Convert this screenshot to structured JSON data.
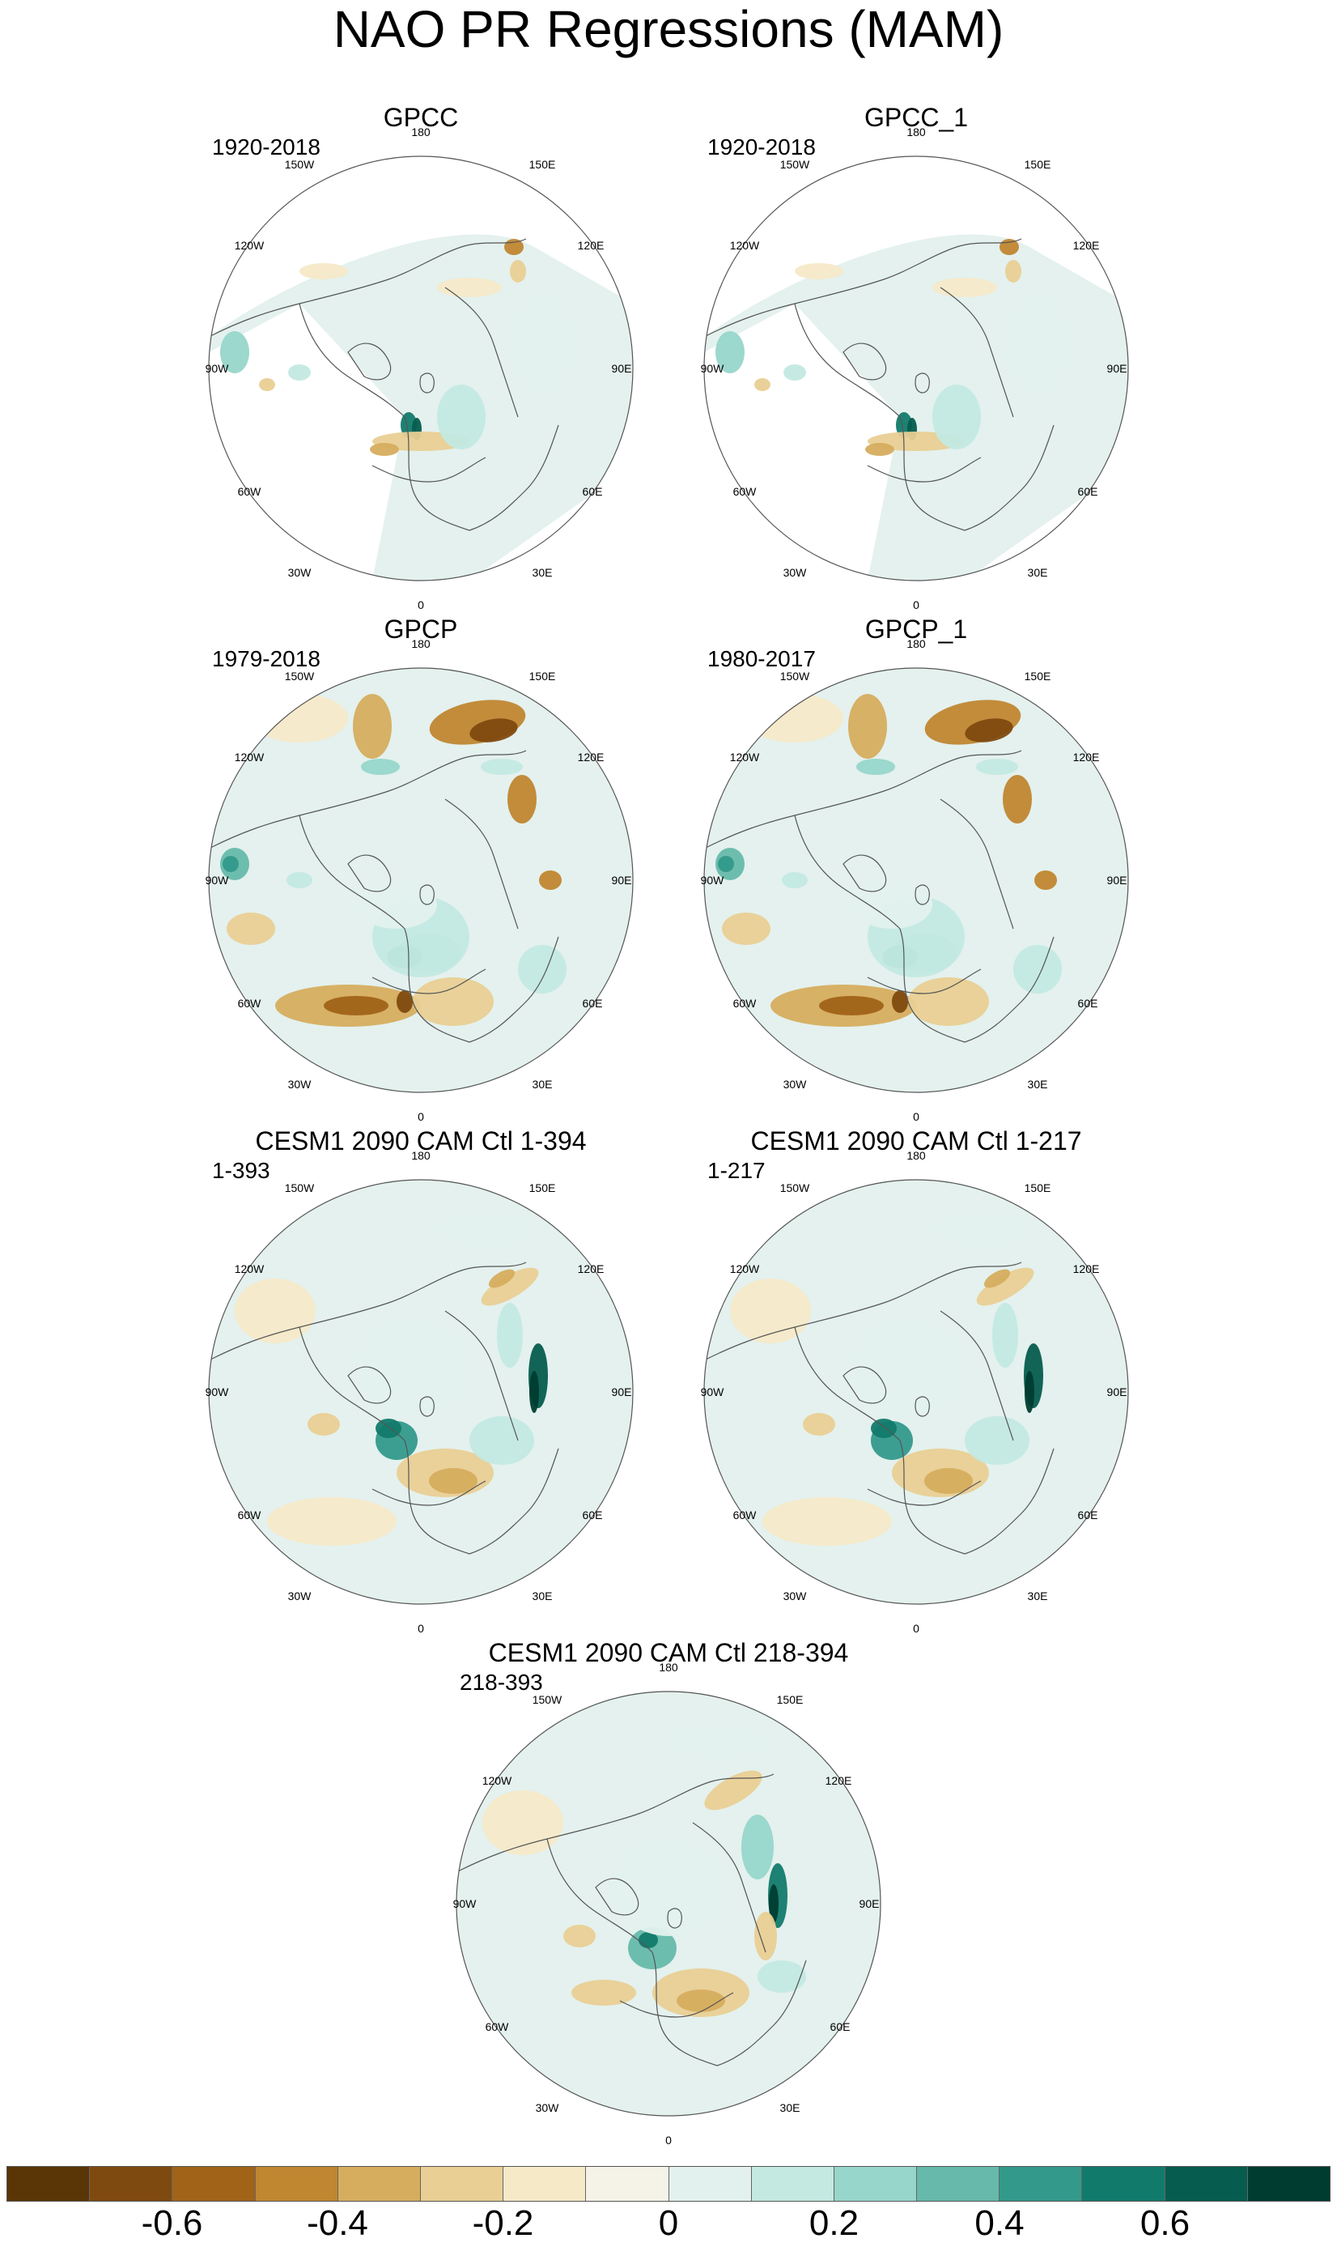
{
  "figure": {
    "title": "NAO PR Regressions (MAM)"
  },
  "lon_labels": [
    "180",
    "150E",
    "120E",
    "90E",
    "60E",
    "30E",
    "0",
    "30W",
    "60W",
    "90W",
    "120W",
    "150W"
  ],
  "panels": [
    {
      "id": "gpcc",
      "title": "GPCC",
      "period": "1920-2018"
    },
    {
      "id": "gpcc1",
      "title": "GPCC_1",
      "period": "1920-2018"
    },
    {
      "id": "gpcp",
      "title": "GPCP",
      "period": "1979-2018"
    },
    {
      "id": "gpcp1",
      "title": "GPCP_1",
      "period": "1980-2017"
    },
    {
      "id": "cesm1",
      "title": "CESM1 2090 CAM Ctl 1-394",
      "period": "1-393"
    },
    {
      "id": "cesm2",
      "title": "CESM1 2090 CAM Ctl 1-217",
      "period": "1-217"
    },
    {
      "id": "cesm3",
      "title": "CESM1 2090 CAM Ctl 218-394",
      "period": "218-393"
    }
  ],
  "colorbar": {
    "colors": [
      "#5a3505",
      "#7f4a0f",
      "#a06318",
      "#c08630",
      "#d6ad5e",
      "#e9cf94",
      "#f5e9c8",
      "#f5f2e8",
      "#e3f1ee",
      "#c3e9e1",
      "#97d6ca",
      "#66b9ab",
      "#33998b",
      "#127a6b",
      "#065c4e",
      "#003c30"
    ],
    "labels": [
      "-0.6",
      "-0.4",
      "-0.2",
      "0",
      "0.2",
      "0.4",
      "0.6"
    ]
  },
  "colors": {
    "ocean_background": "#e4f1ee",
    "land_neutral": "#f5ecd9",
    "coast_line": "#555555",
    "missing_data": "#ffffff"
  }
}
